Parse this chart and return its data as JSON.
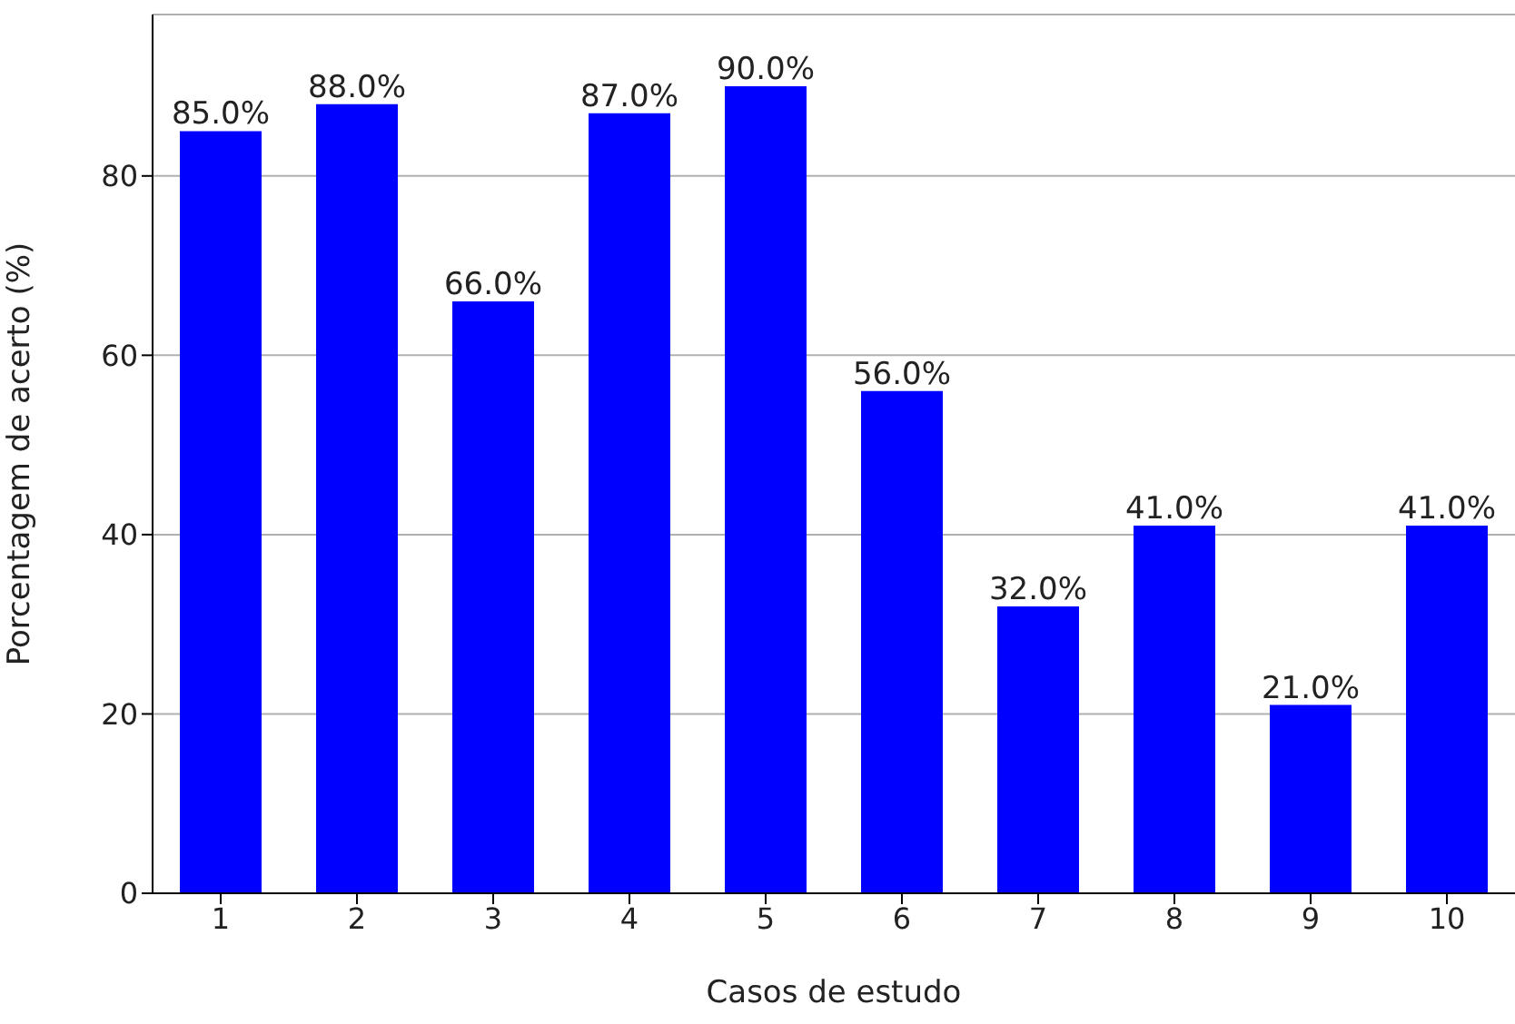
{
  "chart_data": {
    "type": "bar",
    "xlabel": "Casos de estudo",
    "ylabel": "Porcentagem de acerto (%)",
    "categories": [
      "1",
      "2",
      "3",
      "4",
      "5",
      "6",
      "7",
      "8",
      "9",
      "10"
    ],
    "values": [
      85,
      88,
      66,
      87,
      90,
      56,
      32,
      41,
      21,
      41
    ],
    "value_labels": [
      "85.0%",
      "88.0%",
      "66.0%",
      "87.0%",
      "90.0%",
      "56.0%",
      "32.0%",
      "41.0%",
      "21.0%",
      "41.0%"
    ],
    "color": "#0000ff",
    "ylim": [
      0,
      98
    ],
    "yticks": [
      0,
      20,
      40,
      60,
      80
    ],
    "grid": "y"
  }
}
